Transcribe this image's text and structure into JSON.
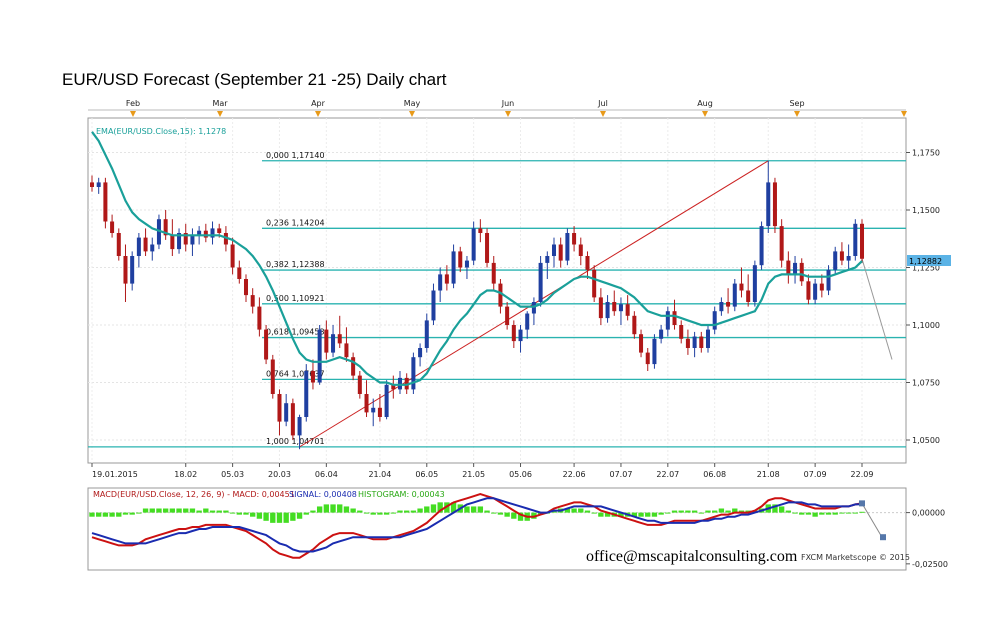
{
  "chart_data": {
    "type": "candlestick",
    "title": "EUR/USD Forecast (September 21 -25) Daily chart",
    "top_month_labels": [
      "Feb",
      "Mar",
      "Apr",
      "May",
      "Jun",
      "Jul",
      "Aug",
      "Sep"
    ],
    "x_tick_labels": [
      "19.01.2015",
      "18.02",
      "05.03",
      "20.03",
      "06.04",
      "21.04",
      "06.05",
      "21.05",
      "05.06",
      "22.06",
      "07.07",
      "22.07",
      "06.08",
      "21.08",
      "07.09",
      "22.09"
    ],
    "y_tick_labels": [
      "1,1750",
      "1,1500",
      "1,1250",
      "1,1000",
      "1,0750",
      "1,0500"
    ],
    "ylim": [
      1.04,
      1.19
    ],
    "ema_label": "EMA(EUR/USD.Close,15): 1,1278",
    "current_price_label": "1,12882",
    "current_price": 1.12882,
    "fibonacci_labels": [
      "0,000 1,17140",
      "0,236 1,14204",
      "0,382 1,12388",
      "0,500 1,10921",
      "0,618 1,09453",
      "0,764 1,07637",
      "1,000 1,04701"
    ],
    "fibonacci_levels": [
      1.1714,
      1.14204,
      1.12388,
      1.10921,
      1.09453,
      1.07637,
      1.04701
    ],
    "colors": {
      "up": "#1f3fa0",
      "down": "#b01818",
      "ema": "#1aa09a",
      "fib": "#2ab3b0",
      "trend": "#cc2222",
      "macd": "#cc1111",
      "signal": "#1a2cb0",
      "histogram": "#44dd22",
      "price_tag": "#5bb3e6"
    },
    "candles": [
      [
        1.162,
        1.165,
        1.158,
        1.16
      ],
      [
        1.16,
        1.164,
        1.157,
        1.162
      ],
      [
        1.162,
        1.164,
        1.142,
        1.145
      ],
      [
        1.145,
        1.148,
        1.138,
        1.14
      ],
      [
        1.14,
        1.142,
        1.128,
        1.13
      ],
      [
        1.13,
        1.135,
        1.11,
        1.118
      ],
      [
        1.118,
        1.132,
        1.115,
        1.13
      ],
      [
        1.13,
        1.14,
        1.125,
        1.138
      ],
      [
        1.138,
        1.142,
        1.13,
        1.132
      ],
      [
        1.132,
        1.138,
        1.128,
        1.135
      ],
      [
        1.135,
        1.148,
        1.133,
        1.146
      ],
      [
        1.146,
        1.15,
        1.137,
        1.139
      ],
      [
        1.139,
        1.146,
        1.13,
        1.133
      ],
      [
        1.133,
        1.142,
        1.131,
        1.14
      ],
      [
        1.14,
        1.144,
        1.132,
        1.135
      ],
      [
        1.135,
        1.142,
        1.13,
        1.139
      ],
      [
        1.139,
        1.143,
        1.135,
        1.141
      ],
      [
        1.141,
        1.144,
        1.136,
        1.138
      ],
      [
        1.138,
        1.145,
        1.135,
        1.142
      ],
      [
        1.142,
        1.144,
        1.138,
        1.14
      ],
      [
        1.14,
        1.143,
        1.132,
        1.135
      ],
      [
        1.135,
        1.138,
        1.122,
        1.125
      ],
      [
        1.125,
        1.128,
        1.118,
        1.12
      ],
      [
        1.12,
        1.122,
        1.11,
        1.113
      ],
      [
        1.113,
        1.116,
        1.105,
        1.108
      ],
      [
        1.108,
        1.112,
        1.095,
        1.098
      ],
      [
        1.098,
        1.1,
        1.083,
        1.085
      ],
      [
        1.085,
        1.087,
        1.068,
        1.07
      ],
      [
        1.07,
        1.072,
        1.052,
        1.058
      ],
      [
        1.058,
        1.07,
        1.056,
        1.066
      ],
      [
        1.066,
        1.068,
        1.05,
        1.052
      ],
      [
        1.052,
        1.061,
        1.046,
        1.06
      ],
      [
        1.06,
        1.083,
        1.058,
        1.08
      ],
      [
        1.08,
        1.085,
        1.072,
        1.075
      ],
      [
        1.075,
        1.1,
        1.074,
        1.098
      ],
      [
        1.098,
        1.102,
        1.085,
        1.088
      ],
      [
        1.088,
        1.1,
        1.086,
        1.096
      ],
      [
        1.096,
        1.104,
        1.09,
        1.092
      ],
      [
        1.092,
        1.099,
        1.084,
        1.086
      ],
      [
        1.086,
        1.088,
        1.076,
        1.078
      ],
      [
        1.078,
        1.08,
        1.068,
        1.07
      ],
      [
        1.07,
        1.076,
        1.06,
        1.062
      ],
      [
        1.062,
        1.068,
        1.056,
        1.064
      ],
      [
        1.064,
        1.07,
        1.058,
        1.06
      ],
      [
        1.06,
        1.076,
        1.059,
        1.074
      ],
      [
        1.074,
        1.078,
        1.068,
        1.072
      ],
      [
        1.072,
        1.08,
        1.07,
        1.077
      ],
      [
        1.077,
        1.079,
        1.07,
        1.072
      ],
      [
        1.072,
        1.088,
        1.07,
        1.086
      ],
      [
        1.086,
        1.092,
        1.082,
        1.09
      ],
      [
        1.09,
        1.105,
        1.088,
        1.102
      ],
      [
        1.102,
        1.118,
        1.1,
        1.115
      ],
      [
        1.115,
        1.125,
        1.11,
        1.122
      ],
      [
        1.122,
        1.126,
        1.115,
        1.118
      ],
      [
        1.118,
        1.135,
        1.116,
        1.132
      ],
      [
        1.132,
        1.134,
        1.123,
        1.125
      ],
      [
        1.125,
        1.13,
        1.12,
        1.128
      ],
      [
        1.128,
        1.145,
        1.126,
        1.142
      ],
      [
        1.142,
        1.146,
        1.136,
        1.14
      ],
      [
        1.14,
        1.142,
        1.125,
        1.127
      ],
      [
        1.127,
        1.13,
        1.115,
        1.118
      ],
      [
        1.118,
        1.12,
        1.105,
        1.108
      ],
      [
        1.108,
        1.11,
        1.098,
        1.1
      ],
      [
        1.1,
        1.102,
        1.09,
        1.093
      ],
      [
        1.093,
        1.1,
        1.088,
        1.098
      ],
      [
        1.098,
        1.106,
        1.094,
        1.105
      ],
      [
        1.105,
        1.112,
        1.1,
        1.11
      ],
      [
        1.11,
        1.13,
        1.108,
        1.127
      ],
      [
        1.127,
        1.132,
        1.12,
        1.13
      ],
      [
        1.13,
        1.138,
        1.125,
        1.135
      ],
      [
        1.135,
        1.138,
        1.125,
        1.128
      ],
      [
        1.128,
        1.142,
        1.126,
        1.14
      ],
      [
        1.14,
        1.143,
        1.132,
        1.135
      ],
      [
        1.135,
        1.138,
        1.126,
        1.13
      ],
      [
        1.13,
        1.132,
        1.12,
        1.124
      ],
      [
        1.124,
        1.126,
        1.11,
        1.112
      ],
      [
        1.112,
        1.116,
        1.1,
        1.103
      ],
      [
        1.103,
        1.113,
        1.101,
        1.11
      ],
      [
        1.11,
        1.115,
        1.104,
        1.106
      ],
      [
        1.106,
        1.112,
        1.1,
        1.109
      ],
      [
        1.109,
        1.113,
        1.102,
        1.104
      ],
      [
        1.104,
        1.106,
        1.094,
        1.096
      ],
      [
        1.096,
        1.098,
        1.086,
        1.088
      ],
      [
        1.088,
        1.09,
        1.08,
        1.083
      ],
      [
        1.083,
        1.096,
        1.081,
        1.094
      ],
      [
        1.094,
        1.1,
        1.092,
        1.098
      ],
      [
        1.098,
        1.108,
        1.095,
        1.106
      ],
      [
        1.106,
        1.111,
        1.098,
        1.1
      ],
      [
        1.1,
        1.102,
        1.092,
        1.094
      ],
      [
        1.094,
        1.098,
        1.087,
        1.09
      ],
      [
        1.09,
        1.097,
        1.086,
        1.095
      ],
      [
        1.095,
        1.097,
        1.088,
        1.09
      ],
      [
        1.09,
        1.1,
        1.088,
        1.098
      ],
      [
        1.098,
        1.108,
        1.096,
        1.106
      ],
      [
        1.106,
        1.112,
        1.104,
        1.11
      ],
      [
        1.11,
        1.116,
        1.105,
        1.108
      ],
      [
        1.108,
        1.12,
        1.106,
        1.118
      ],
      [
        1.118,
        1.125,
        1.112,
        1.115
      ],
      [
        1.115,
        1.122,
        1.108,
        1.11
      ],
      [
        1.11,
        1.128,
        1.108,
        1.126
      ],
      [
        1.126,
        1.145,
        1.124,
        1.143
      ],
      [
        1.143,
        1.1714,
        1.14,
        1.162
      ],
      [
        1.162,
        1.164,
        1.14,
        1.143
      ],
      [
        1.143,
        1.146,
        1.125,
        1.128
      ],
      [
        1.128,
        1.132,
        1.118,
        1.122
      ],
      [
        1.122,
        1.13,
        1.118,
        1.127
      ],
      [
        1.127,
        1.129,
        1.117,
        1.119
      ],
      [
        1.119,
        1.122,
        1.109,
        1.111
      ],
      [
        1.111,
        1.12,
        1.109,
        1.118
      ],
      [
        1.118,
        1.122,
        1.112,
        1.115
      ],
      [
        1.115,
        1.126,
        1.113,
        1.124
      ],
      [
        1.124,
        1.134,
        1.122,
        1.132
      ],
      [
        1.132,
        1.136,
        1.126,
        1.128
      ],
      [
        1.128,
        1.135,
        1.124,
        1.13
      ],
      [
        1.13,
        1.146,
        1.128,
        1.144
      ],
      [
        1.144,
        1.146,
        1.127,
        1.1288
      ]
    ],
    "ema": [
      1.184,
      1.18,
      1.174,
      1.168,
      1.161,
      1.154,
      1.149,
      1.146,
      1.144,
      1.142,
      1.141,
      1.14,
      1.139,
      1.139,
      1.139,
      1.139,
      1.139,
      1.139,
      1.139,
      1.139,
      1.138,
      1.137,
      1.135,
      1.133,
      1.13,
      1.126,
      1.121,
      1.115,
      1.108,
      1.101,
      1.094,
      1.088,
      1.085,
      1.084,
      1.084,
      1.084,
      1.085,
      1.086,
      1.085,
      1.084,
      1.082,
      1.079,
      1.077,
      1.075,
      1.075,
      1.074,
      1.074,
      1.074,
      1.075,
      1.076,
      1.079,
      1.084,
      1.089,
      1.093,
      1.098,
      1.102,
      1.105,
      1.109,
      1.113,
      1.115,
      1.115,
      1.114,
      1.112,
      1.11,
      1.108,
      1.108,
      1.108,
      1.109,
      1.111,
      1.114,
      1.116,
      1.118,
      1.12,
      1.121,
      1.121,
      1.12,
      1.119,
      1.118,
      1.117,
      1.116,
      1.114,
      1.112,
      1.109,
      1.106,
      1.105,
      1.104,
      1.104,
      1.104,
      1.103,
      1.102,
      1.101,
      1.1,
      1.1,
      1.1,
      1.101,
      1.102,
      1.103,
      1.104,
      1.105,
      1.106,
      1.111,
      1.118,
      1.121,
      1.122,
      1.122,
      1.122,
      1.122,
      1.121,
      1.121,
      1.121,
      1.121,
      1.122,
      1.123,
      1.124,
      1.125,
      1.1278
    ],
    "macd_label": "MACD(EUR/USD.Close, 12, 26, 9) - MACD: 0,00451",
    "signal_label": "SIGNAL: 0,00408",
    "histogram_label": "HISTOGRAM: 0,00043",
    "macd_y_tick_labels": [
      "0,00000",
      "-0,02500"
    ],
    "macd_ylim": [
      -0.028,
      0.012
    ],
    "macd": [
      -0.012,
      -0.013,
      -0.014,
      -0.015,
      -0.016,
      -0.016,
      -0.016,
      -0.015,
      -0.013,
      -0.012,
      -0.011,
      -0.01,
      -0.009,
      -0.008,
      -0.008,
      -0.007,
      -0.007,
      -0.006,
      -0.006,
      -0.006,
      -0.006,
      -0.007,
      -0.008,
      -0.009,
      -0.011,
      -0.013,
      -0.015,
      -0.018,
      -0.02,
      -0.021,
      -0.022,
      -0.022,
      -0.02,
      -0.018,
      -0.015,
      -0.013,
      -0.011,
      -0.01,
      -0.01,
      -0.01,
      -0.011,
      -0.012,
      -0.013,
      -0.013,
      -0.013,
      -0.012,
      -0.011,
      -0.01,
      -0.009,
      -0.007,
      -0.005,
      -0.002,
      0.001,
      0.003,
      0.005,
      0.006,
      0.007,
      0.008,
      0.009,
      0.008,
      0.007,
      0.005,
      0.003,
      0.001,
      -0.001,
      -0.002,
      -0.002,
      -0.001,
      0.0,
      0.002,
      0.003,
      0.004,
      0.005,
      0.005,
      0.004,
      0.003,
      0.001,
      0.0,
      -0.001,
      -0.002,
      -0.003,
      -0.004,
      -0.005,
      -0.006,
      -0.006,
      -0.006,
      -0.005,
      -0.004,
      -0.004,
      -0.004,
      -0.004,
      -0.004,
      -0.003,
      -0.002,
      -0.001,
      -0.001,
      0.0,
      0.0,
      0.0,
      0.001,
      0.003,
      0.006,
      0.007,
      0.007,
      0.006,
      0.005,
      0.004,
      0.003,
      0.002,
      0.002,
      0.002,
      0.002,
      0.003,
      0.003,
      0.004,
      0.0045
    ],
    "signal": [
      -0.01,
      -0.011,
      -0.012,
      -0.013,
      -0.014,
      -0.015,
      -0.015,
      -0.015,
      -0.015,
      -0.014,
      -0.013,
      -0.012,
      -0.011,
      -0.01,
      -0.01,
      -0.009,
      -0.008,
      -0.008,
      -0.007,
      -0.007,
      -0.007,
      -0.007,
      -0.007,
      -0.008,
      -0.009,
      -0.01,
      -0.011,
      -0.013,
      -0.015,
      -0.016,
      -0.018,
      -0.019,
      -0.019,
      -0.019,
      -0.018,
      -0.017,
      -0.015,
      -0.014,
      -0.013,
      -0.012,
      -0.012,
      -0.012,
      -0.012,
      -0.012,
      -0.012,
      -0.012,
      -0.012,
      -0.011,
      -0.01,
      -0.009,
      -0.008,
      -0.006,
      -0.004,
      -0.002,
      0.0,
      0.002,
      0.004,
      0.005,
      0.006,
      0.007,
      0.007,
      0.006,
      0.005,
      0.004,
      0.003,
      0.002,
      0.001,
      0.0,
      0.0,
      0.001,
      0.001,
      0.002,
      0.003,
      0.003,
      0.003,
      0.003,
      0.003,
      0.002,
      0.001,
      0.0,
      -0.001,
      -0.002,
      -0.003,
      -0.004,
      -0.004,
      -0.005,
      -0.005,
      -0.005,
      -0.005,
      -0.005,
      -0.005,
      -0.004,
      -0.004,
      -0.003,
      -0.003,
      -0.002,
      -0.002,
      -0.001,
      -0.001,
      0.0,
      0.001,
      0.002,
      0.003,
      0.004,
      0.005,
      0.005,
      0.005,
      0.004,
      0.004,
      0.003,
      0.003,
      0.003,
      0.003,
      0.003,
      0.004,
      0.00408
    ],
    "histogram": [
      -0.002,
      -0.002,
      -0.002,
      -0.002,
      -0.002,
      -0.001,
      -0.001,
      0.0,
      0.002,
      0.002,
      0.002,
      0.002,
      0.002,
      0.002,
      0.002,
      0.002,
      0.001,
      0.002,
      0.001,
      0.001,
      0.001,
      0.0,
      -0.001,
      -0.001,
      -0.002,
      -0.003,
      -0.004,
      -0.005,
      -0.005,
      -0.005,
      -0.004,
      -0.003,
      -0.001,
      0.001,
      0.003,
      0.004,
      0.004,
      0.004,
      0.003,
      0.002,
      0.001,
      0.0,
      -0.001,
      -0.001,
      -0.001,
      0.0,
      0.001,
      0.001,
      0.001,
      0.002,
      0.003,
      0.004,
      0.005,
      0.005,
      0.005,
      0.004,
      0.003,
      0.003,
      0.003,
      0.001,
      0.0,
      -0.001,
      -0.002,
      -0.003,
      -0.004,
      -0.004,
      -0.003,
      -0.001,
      0.0,
      0.001,
      0.002,
      0.002,
      0.002,
      0.002,
      0.001,
      0.0,
      -0.002,
      -0.002,
      -0.002,
      -0.002,
      -0.002,
      -0.002,
      -0.002,
      -0.002,
      -0.002,
      -0.001,
      0.0,
      0.001,
      0.001,
      0.001,
      0.001,
      0.0,
      0.001,
      0.001,
      0.002,
      0.001,
      0.002,
      0.001,
      0.001,
      0.001,
      0.002,
      0.004,
      0.004,
      0.003,
      0.001,
      0.0,
      -0.001,
      -0.001,
      -0.002,
      -0.001,
      -0.001,
      -0.001,
      0.0,
      0.0,
      0.0,
      0.0004
    ],
    "watermark": "FXCM Marketscope © 2015"
  },
  "footer": {
    "email": "office@mscapitalconsulting.com"
  }
}
